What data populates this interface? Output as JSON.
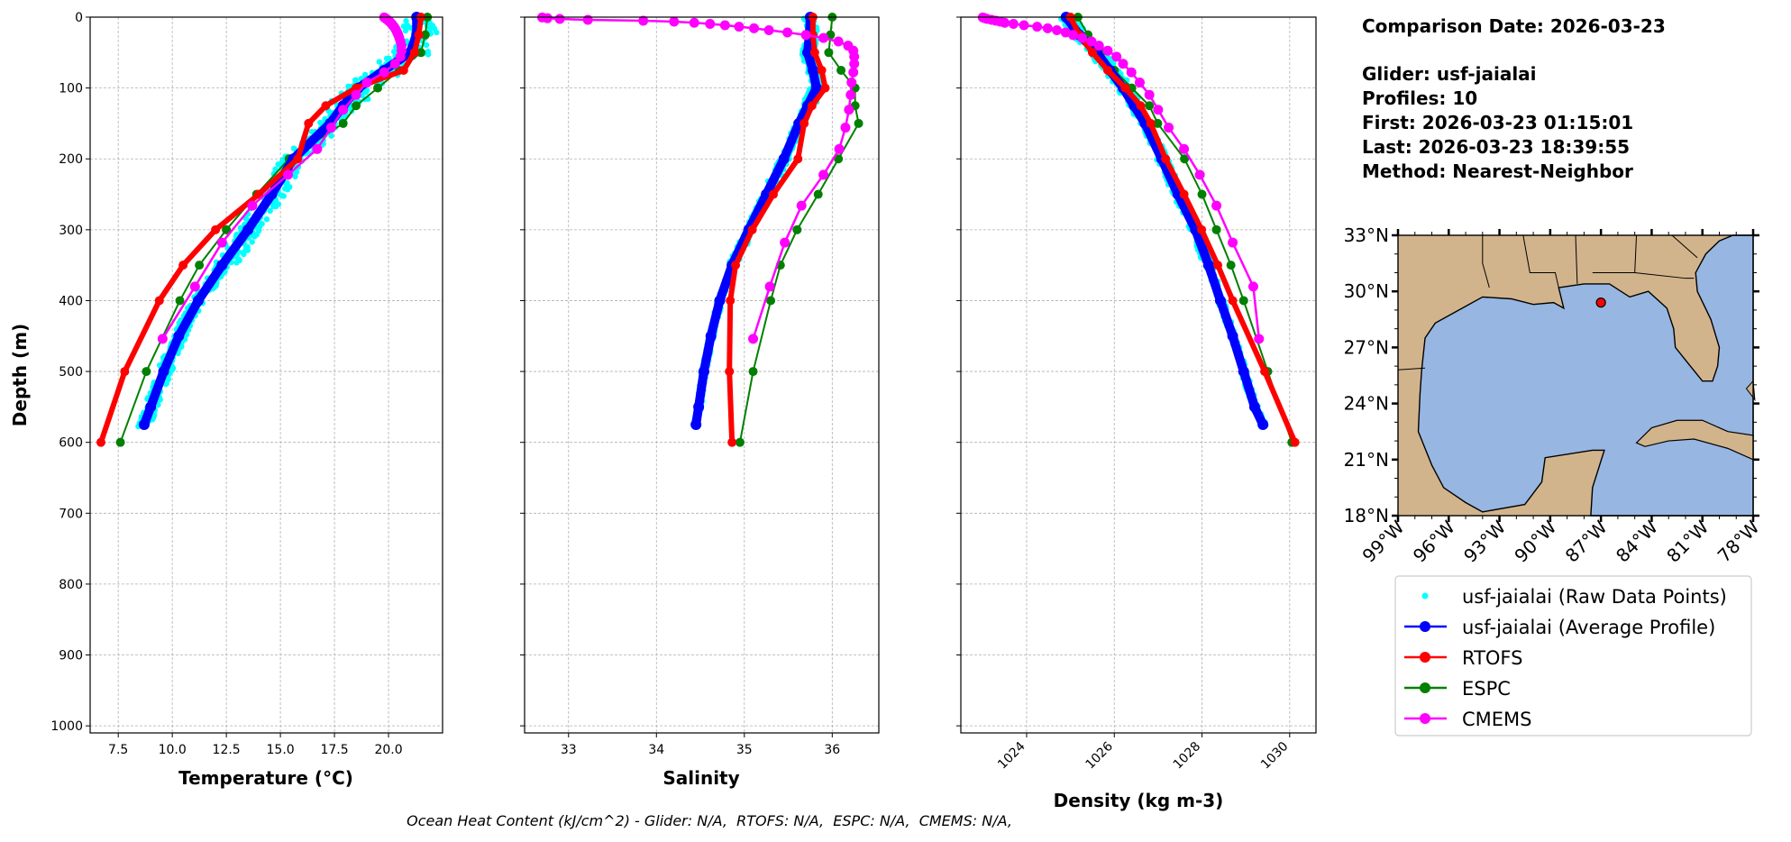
{
  "info": {
    "comparison_date": "Comparison Date: 2026-03-23",
    "glider": "Glider: usf-jaialai",
    "profiles": "Profiles: 10",
    "first": "First: 2026-03-23 01:15:01",
    "last": "Last: 2026-03-23 18:39:55",
    "method": "Method: Nearest-Neighbor"
  },
  "footer": "Ocean Heat Content (kJ/cm^2) - Glider: N/A,  RTOFS: N/A,  ESPC: N/A,  CMEMS: N/A,",
  "legend": [
    {
      "label": "usf-jaialai (Raw Data Points)",
      "color": "#00ffff",
      "style": "points"
    },
    {
      "label": "usf-jaialai (Average Profile)",
      "color": "#0000ff",
      "style": "line-marker"
    },
    {
      "label": "RTOFS",
      "color": "#ff0000",
      "style": "line-marker"
    },
    {
      "label": "ESPC",
      "color": "#008000",
      "style": "line-marker"
    },
    {
      "label": "CMEMS",
      "color": "#ff00ff",
      "style": "line-marker"
    }
  ],
  "map": {
    "lon_range": [
      -99,
      -78
    ],
    "lat_range": [
      18,
      33
    ],
    "lon_ticks": [
      "99°W",
      "96°W",
      "93°W",
      "90°W",
      "87°W",
      "84°W",
      "81°W",
      "78°W"
    ],
    "lat_ticks": [
      "18°N",
      "21°N",
      "24°N",
      "27°N",
      "30°N",
      "33°N"
    ],
    "land_color": "#d2b48c",
    "ocean_color": "#97b6e1",
    "glider_position": {
      "lon": -87.0,
      "lat": 29.4,
      "color": "#ff0000"
    }
  },
  "chart_data": [
    {
      "type": "line",
      "key": "temp",
      "xlabel": "Temperature (°C)",
      "ylabel": "Depth (m)",
      "xlim": [
        6.2,
        22.5
      ],
      "ylim": [
        1010,
        0
      ],
      "xticks": [
        7.5,
        10.0,
        12.5,
        15.0,
        17.5,
        20.0
      ],
      "xtick_labels": [
        "7.5",
        "10.0",
        "12.5",
        "15.0",
        "17.5",
        "20.0"
      ],
      "yticks": [
        0,
        100,
        200,
        300,
        400,
        500,
        600,
        700,
        800,
        900,
        1000
      ],
      "ytick_labels": [
        "0",
        "100",
        "200",
        "300",
        "400",
        "500",
        "600",
        "700",
        "800",
        "900",
        "1000"
      ],
      "grid": true,
      "series": [
        {
          "name": "usf-jaialai (Average Profile)",
          "depth": [
            0,
            25,
            50,
            75,
            100,
            125,
            150,
            200,
            250,
            300,
            350,
            400,
            450,
            500,
            550,
            575
          ],
          "values": [
            21.3,
            21.3,
            21.0,
            19.8,
            18.6,
            17.9,
            17.3,
            15.6,
            14.6,
            13.5,
            12.3,
            11.2,
            10.3,
            9.6,
            9.0,
            8.7
          ]
        },
        {
          "name": "RTOFS",
          "depth": [
            0,
            25,
            50,
            75,
            100,
            125,
            150,
            200,
            250,
            300,
            350,
            400,
            500,
            600
          ],
          "values": [
            21.5,
            21.4,
            21.2,
            20.7,
            18.5,
            17.1,
            16.3,
            15.8,
            14.0,
            12.0,
            10.5,
            9.4,
            7.8,
            6.7
          ]
        },
        {
          "name": "ESPC",
          "depth": [
            0,
            25,
            50,
            75,
            100,
            125,
            150,
            200,
            250,
            300,
            350,
            400,
            500,
            600
          ],
          "values": [
            21.8,
            21.7,
            21.5,
            20.5,
            19.5,
            18.5,
            17.9,
            15.4,
            13.9,
            12.5,
            11.25,
            10.35,
            8.8,
            7.6
          ]
        },
        {
          "name": "CMEMS",
          "depth": [
            0.5,
            1.5,
            2.6,
            3.8,
            5.1,
            6.4,
            7.9,
            9.6,
            11.4,
            13.5,
            15.8,
            18.5,
            21.6,
            25.2,
            29.4,
            34.4,
            40.3,
            47.4,
            55.8,
            65.8,
            77.9,
            92.3,
            109.7,
            130.7,
            155.9,
            186.1,
            222.5,
            266.0,
            318.1,
            380.2,
            453.9
          ],
          "values": [
            19.8,
            19.85,
            19.9,
            19.95,
            20.0,
            20.05,
            20.1,
            20.15,
            20.2,
            20.25,
            20.3,
            20.35,
            20.4,
            20.45,
            20.5,
            20.55,
            20.6,
            20.6,
            20.55,
            20.3,
            19.8,
            19.0,
            18.5,
            17.9,
            17.35,
            16.7,
            15.35,
            13.7,
            12.3,
            11.05,
            9.55
          ]
        }
      ]
    },
    {
      "type": "line",
      "key": "sal",
      "xlabel": "Salinity",
      "xlim": [
        32.5,
        36.53
      ],
      "ylim": [
        1010,
        0
      ],
      "xticks": [
        33,
        34,
        35,
        36
      ],
      "xtick_labels": [
        "33",
        "34",
        "35",
        "36"
      ],
      "yticks": [
        0,
        100,
        200,
        300,
        400,
        500,
        600,
        700,
        800,
        900,
        1000
      ],
      "grid": true,
      "series": [
        {
          "name": "usf-jaialai (Average Profile)",
          "depth": [
            0,
            25,
            50,
            75,
            100,
            125,
            150,
            200,
            250,
            300,
            350,
            400,
            450,
            500,
            550,
            575
          ],
          "values": [
            35.75,
            35.74,
            35.72,
            35.78,
            35.82,
            35.72,
            35.62,
            35.45,
            35.25,
            35.05,
            34.86,
            34.72,
            34.62,
            34.54,
            34.48,
            34.45
          ]
        },
        {
          "name": "RTOFS",
          "depth": [
            0,
            25,
            50,
            75,
            100,
            125,
            150,
            200,
            250,
            300,
            350,
            400,
            500,
            600
          ],
          "values": [
            35.78,
            35.78,
            35.8,
            35.88,
            35.92,
            35.77,
            35.68,
            35.61,
            35.33,
            35.09,
            34.9,
            34.84,
            34.83,
            34.86
          ]
        },
        {
          "name": "ESPC",
          "depth": [
            0,
            25,
            50,
            75,
            100,
            125,
            150,
            200,
            250,
            300,
            350,
            400,
            500,
            600
          ],
          "values": [
            36.0,
            35.98,
            35.96,
            36.1,
            36.26,
            36.26,
            36.3,
            36.07,
            35.84,
            35.6,
            35.41,
            35.3,
            35.1,
            34.95
          ]
        },
        {
          "name": "CMEMS",
          "depth": [
            0.5,
            1.5,
            2.6,
            3.8,
            5.1,
            6.4,
            7.9,
            9.6,
            11.4,
            13.5,
            15.8,
            18.5,
            21.6,
            25.2,
            29.4,
            34.4,
            40.3,
            47.4,
            55.8,
            65.8,
            77.9,
            92.3,
            109.7,
            130.7,
            155.9,
            186.1,
            222.5,
            266.0,
            318.1,
            380.2,
            453.9
          ],
          "values": [
            32.7,
            32.76,
            32.9,
            33.22,
            33.85,
            34.2,
            34.43,
            34.61,
            34.78,
            34.94,
            35.11,
            35.28,
            35.49,
            35.7,
            35.9,
            36.07,
            36.18,
            36.24,
            36.25,
            36.25,
            36.24,
            36.22,
            36.21,
            36.19,
            36.15,
            36.08,
            35.9,
            35.65,
            35.46,
            35.29,
            35.1
          ]
        }
      ]
    },
    {
      "type": "line",
      "key": "dens",
      "xlabel": "Density (kg m-3)",
      "xlim": [
        1022.5,
        1030.6
      ],
      "ylim": [
        1010,
        0
      ],
      "xticks": [
        1024,
        1026,
        1028,
        1030
      ],
      "xtick_labels": [
        "1024",
        "1026",
        "1028",
        "1030"
      ],
      "yticks": [
        0,
        100,
        200,
        300,
        400,
        500,
        600,
        700,
        800,
        900,
        1000
      ],
      "grid": true,
      "series": [
        {
          "name": "usf-jaialai (Average Profile)",
          "depth": [
            0,
            25,
            50,
            75,
            100,
            125,
            150,
            200,
            250,
            300,
            350,
            400,
            450,
            500,
            550,
            575
          ],
          "values": [
            1024.9,
            1025.2,
            1025.6,
            1025.9,
            1026.2,
            1026.45,
            1026.7,
            1027.08,
            1027.45,
            1027.85,
            1028.15,
            1028.42,
            1028.7,
            1028.95,
            1029.2,
            1029.39
          ]
        },
        {
          "name": "RTOFS",
          "depth": [
            0,
            25,
            50,
            75,
            100,
            125,
            150,
            200,
            250,
            300,
            350,
            400,
            500,
            600
          ],
          "values": [
            1025.0,
            1025.2,
            1025.5,
            1025.85,
            1026.25,
            1026.6,
            1026.83,
            1027.17,
            1027.59,
            1027.99,
            1028.36,
            1028.7,
            1029.43,
            1030.12
          ]
        },
        {
          "name": "ESPC",
          "depth": [
            0,
            25,
            50,
            75,
            100,
            125,
            150,
            200,
            250,
            300,
            350,
            400,
            500,
            600
          ],
          "values": [
            1025.17,
            1025.4,
            1025.7,
            1026.0,
            1026.4,
            1026.8,
            1026.99,
            1027.6,
            1028.0,
            1028.33,
            1028.66,
            1028.95,
            1029.5,
            1030.05
          ]
        },
        {
          "name": "CMEMS",
          "depth": [
            0.5,
            1.5,
            2.6,
            3.8,
            5.1,
            6.4,
            7.9,
            9.6,
            11.4,
            13.5,
            15.8,
            18.5,
            21.6,
            25.2,
            29.4,
            34.4,
            40.3,
            47.4,
            55.8,
            65.8,
            77.9,
            92.3,
            109.7,
            130.7,
            155.9,
            186.1,
            222.5,
            266.0,
            318.1,
            380.2,
            453.9
          ],
          "values": [
            1023.0,
            1023.05,
            1023.1,
            1023.2,
            1023.3,
            1023.4,
            1023.5,
            1023.7,
            1023.94,
            1024.24,
            1024.48,
            1024.69,
            1024.89,
            1025.06,
            1025.27,
            1025.48,
            1025.65,
            1025.85,
            1026.05,
            1026.2,
            1026.39,
            1026.58,
            1026.8,
            1027.0,
            1027.24,
            1027.59,
            1027.95,
            1028.33,
            1028.7,
            1029.17,
            1029.3
          ]
        }
      ]
    }
  ]
}
